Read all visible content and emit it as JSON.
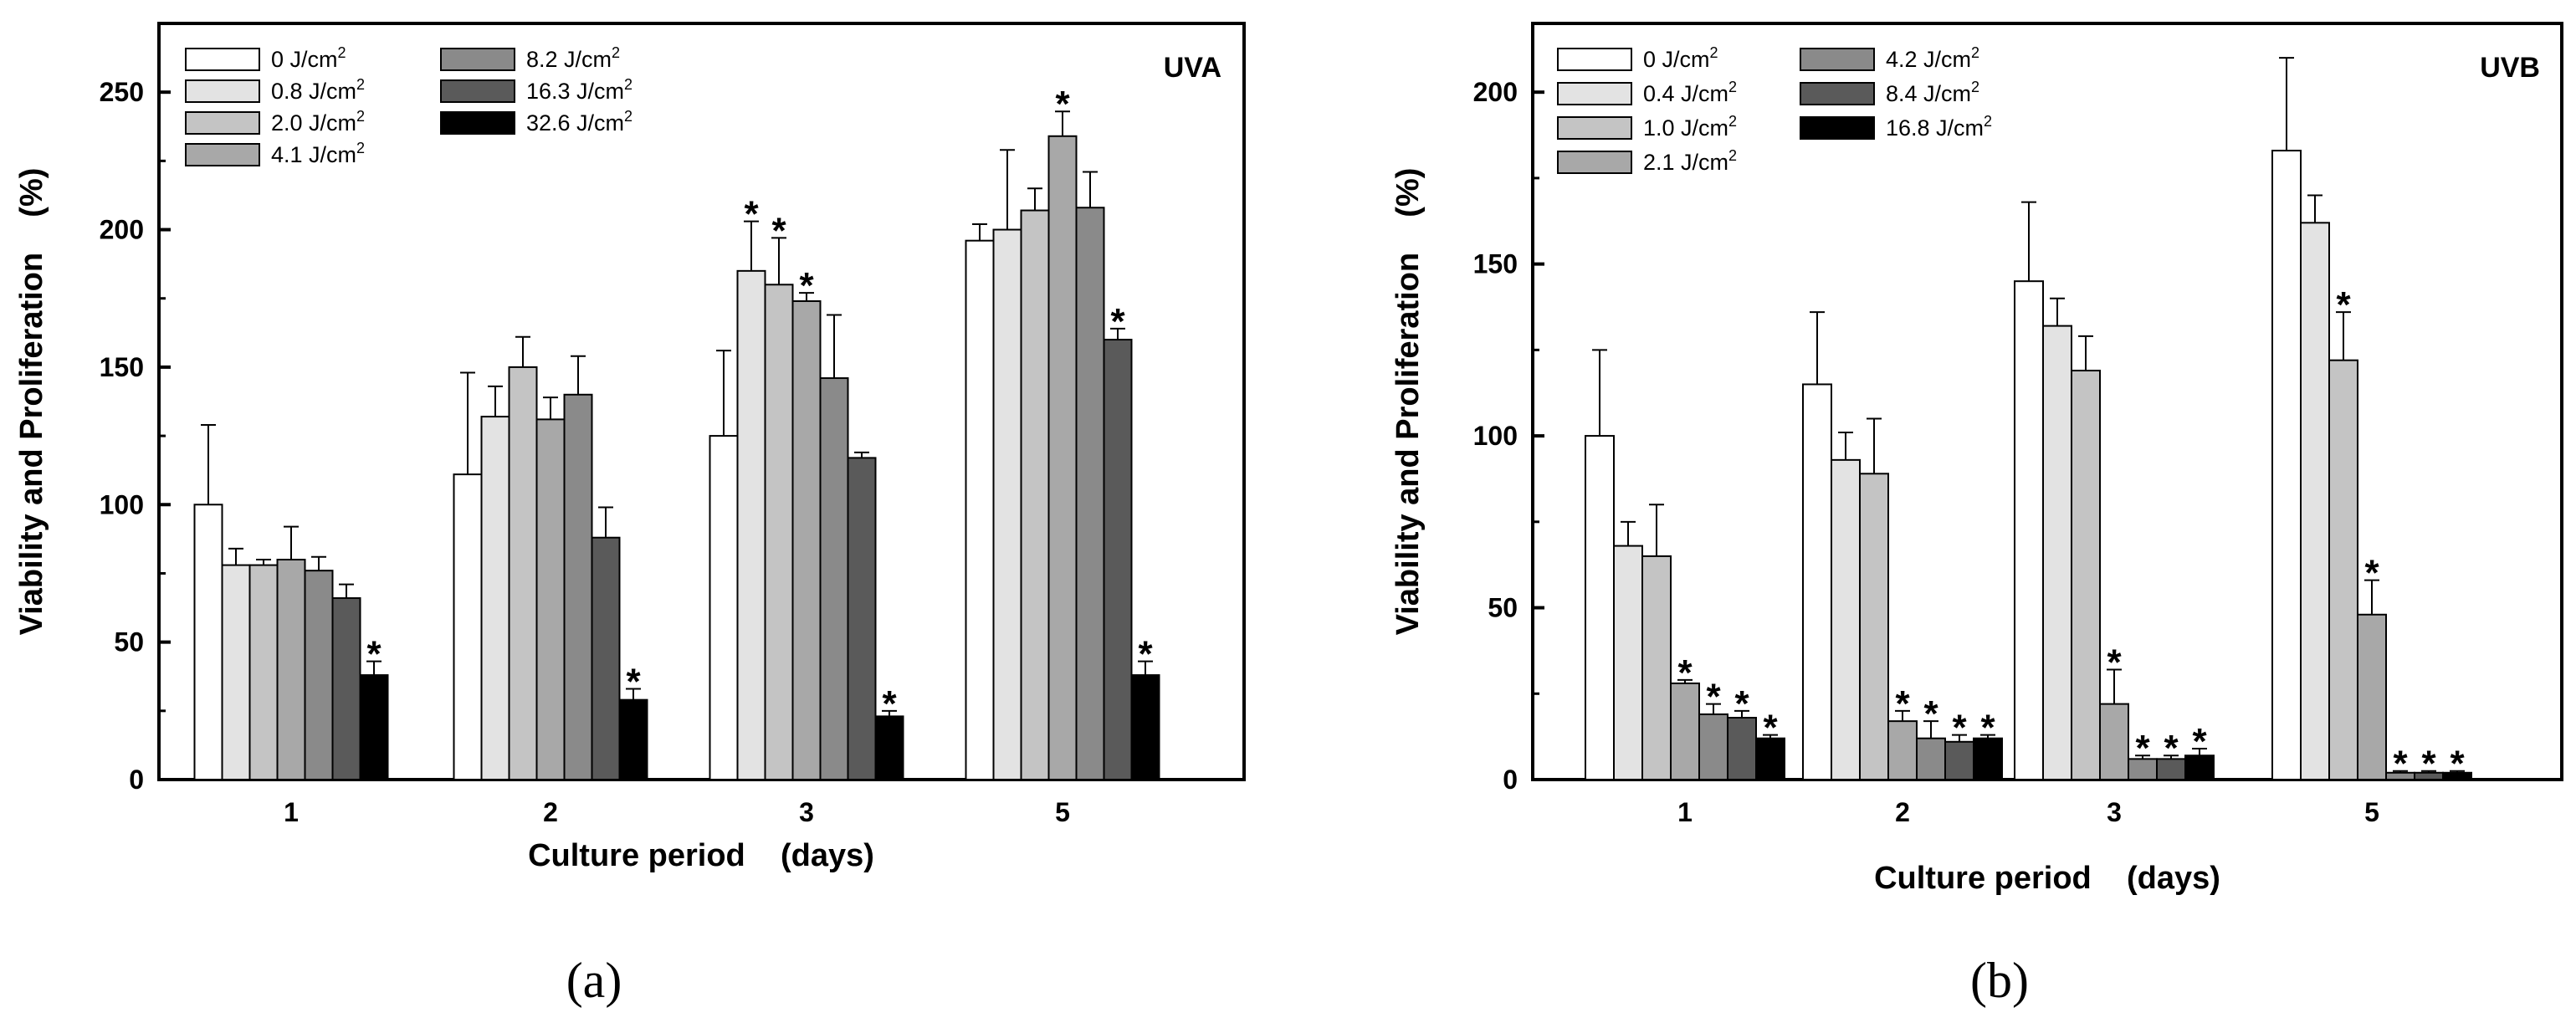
{
  "chart_data": [
    {
      "type": "bar",
      "panel_label": "(a)",
      "title": "UVA",
      "xlabel": "Culture period    (days)",
      "ylabel": "Viability and Proliferation    (%)",
      "ylim": [
        0,
        275
      ],
      "yticks": [
        0,
        50,
        100,
        150,
        200,
        250
      ],
      "categories": [
        "1",
        "2",
        "3",
        "5"
      ],
      "legend_placement": "top-left, two columns",
      "series": [
        {
          "name": "0",
          "unit": "J/cm",
          "exp": "2",
          "color": "#ffffff",
          "values": [
            100,
            111,
            125,
            196
          ],
          "errors": [
            29,
            37,
            31,
            6
          ],
          "significant": [
            false,
            false,
            false,
            false
          ]
        },
        {
          "name": "0.8",
          "unit": "J/cm",
          "exp": "2",
          "color": "#e3e3e3",
          "values": [
            78,
            132,
            185,
            200
          ],
          "errors": [
            6,
            11,
            18,
            29
          ],
          "significant": [
            false,
            false,
            true,
            false
          ]
        },
        {
          "name": "2.0",
          "unit": "J/cm",
          "exp": "2",
          "color": "#c4c4c4",
          "values": [
            78,
            150,
            180,
            207
          ],
          "errors": [
            2,
            11,
            17,
            8
          ],
          "significant": [
            false,
            false,
            true,
            false
          ]
        },
        {
          "name": "4.1",
          "unit": "J/cm",
          "exp": "2",
          "color": "#a8a8a8",
          "values": [
            80,
            131,
            174,
            234
          ],
          "errors": [
            12,
            8,
            3,
            9
          ],
          "significant": [
            false,
            false,
            true,
            true
          ]
        },
        {
          "name": "8.2",
          "unit": "J/cm",
          "exp": "2",
          "color": "#8a8a8a",
          "values": [
            76,
            140,
            146,
            208
          ],
          "errors": [
            5,
            14,
            23,
            13
          ],
          "significant": [
            false,
            false,
            false,
            false
          ]
        },
        {
          "name": "16.3",
          "unit": "J/cm",
          "exp": "2",
          "color": "#5a5a5a",
          "values": [
            66,
            88,
            117,
            160
          ],
          "errors": [
            5,
            11,
            2,
            4
          ],
          "significant": [
            false,
            false,
            false,
            true
          ]
        },
        {
          "name": "32.6",
          "unit": "J/cm",
          "exp": "2",
          "color": "#000000",
          "values": [
            38,
            29,
            23,
            38
          ],
          "errors": [
            5,
            4,
            2,
            5
          ],
          "significant": [
            true,
            true,
            true,
            true
          ]
        }
      ]
    },
    {
      "type": "bar",
      "panel_label": "(b)",
      "title": "UVB",
      "xlabel": "Culture period    (days)",
      "ylabel": "Viability and Proliferation    (%)",
      "ylim": [
        0,
        220
      ],
      "yticks": [
        0,
        50,
        100,
        150,
        200
      ],
      "categories": [
        "1",
        "2",
        "3",
        "5"
      ],
      "legend_placement": "top-left, two columns",
      "series": [
        {
          "name": "0",
          "unit": "J/cm",
          "exp": "2",
          "color": "#ffffff",
          "values": [
            100,
            115,
            145,
            183
          ],
          "errors": [
            25,
            21,
            23,
            27
          ],
          "significant": [
            false,
            false,
            false,
            false
          ]
        },
        {
          "name": "0.4",
          "unit": "J/cm",
          "exp": "2",
          "color": "#e3e3e3",
          "values": [
            68,
            93,
            132,
            162
          ],
          "errors": [
            7,
            8,
            8,
            8
          ],
          "significant": [
            false,
            false,
            false,
            false
          ]
        },
        {
          "name": "1.0",
          "unit": "J/cm",
          "exp": "2",
          "color": "#c4c4c4",
          "values": [
            65,
            89,
            119,
            122
          ],
          "errors": [
            15,
            16,
            10,
            14
          ],
          "significant": [
            false,
            false,
            false,
            true
          ]
        },
        {
          "name": "2.1",
          "unit": "J/cm",
          "exp": "2",
          "color": "#a8a8a8",
          "values": [
            28,
            17,
            22,
            48
          ],
          "errors": [
            1,
            3,
            10,
            10
          ],
          "significant": [
            true,
            true,
            true,
            true
          ]
        },
        {
          "name": "4.2",
          "unit": "J/cm",
          "exp": "2",
          "color": "#8a8a8a",
          "values": [
            19,
            12,
            6,
            2
          ],
          "errors": [
            3,
            5,
            1,
            0.5
          ],
          "significant": [
            true,
            true,
            true,
            true
          ]
        },
        {
          "name": "8.4",
          "unit": "J/cm",
          "exp": "2",
          "color": "#5a5a5a",
          "values": [
            18,
            11,
            6,
            2
          ],
          "errors": [
            2,
            2,
            1,
            0.5
          ],
          "significant": [
            true,
            true,
            true,
            true
          ]
        },
        {
          "name": "16.8",
          "unit": "J/cm",
          "exp": "2",
          "color": "#000000",
          "values": [
            12,
            12,
            7,
            2
          ],
          "errors": [
            1,
            1,
            2,
            0.5
          ],
          "significant": [
            true,
            true,
            true,
            true
          ]
        }
      ]
    }
  ]
}
